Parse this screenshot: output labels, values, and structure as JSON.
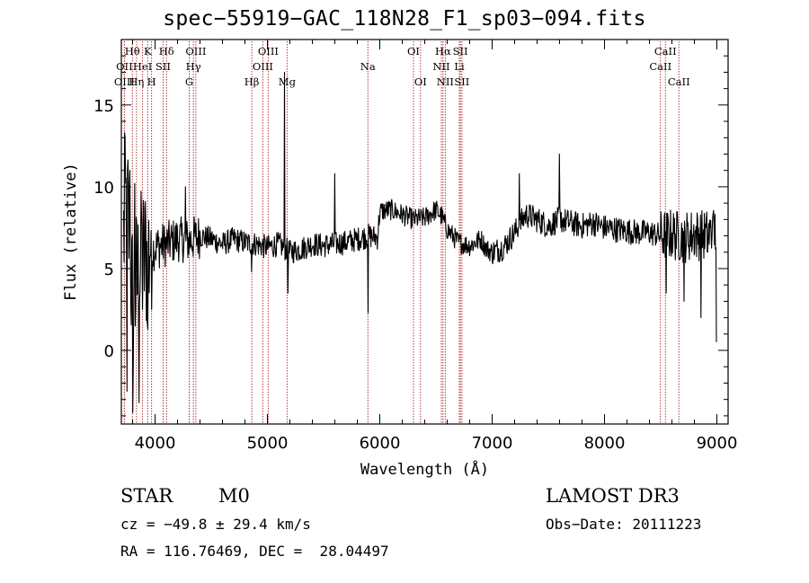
{
  "chart_data": {
    "type": "line",
    "title": "spec−55919−GAC_118N28_F1_sp03−094.fits",
    "xlabel": "Wavelength (Å)",
    "ylabel": "Flux (relative)",
    "xlim": [
      3700,
      9100
    ],
    "ylim": [
      -4.5,
      19.0
    ],
    "x_ticks": [
      4000,
      5000,
      6000,
      7000,
      8000,
      9000
    ],
    "y_ticks": [
      0,
      5,
      10,
      15
    ],
    "grid": false,
    "line_color": "#000000",
    "marker_color": "#b22222",
    "lines": [
      {
        "label": "Hθ",
        "x": 3798,
        "row": 1
      },
      {
        "label": "OII",
        "x": 3727,
        "row": 2
      },
      {
        "label": "OIII",
        "x": 3727,
        "row": 3
      },
      {
        "label": "K",
        "x": 3934,
        "row": 1
      },
      {
        "label": "HeI",
        "x": 3889,
        "row": 2
      },
      {
        "label": "Hη",
        "x": 3835,
        "row": 3
      },
      {
        "label": "Hδ",
        "x": 4102,
        "row": 1
      },
      {
        "label": "SII",
        "x": 4072,
        "row": 2
      },
      {
        "label": "H",
        "x": 3969,
        "row": 3
      },
      {
        "label": "OIII",
        "x": 4363,
        "row": 1
      },
      {
        "label": "Hγ",
        "x": 4341,
        "row": 2
      },
      {
        "label": "G",
        "x": 4304,
        "row": 3
      },
      {
        "label": "OIII",
        "x": 5007,
        "row": 1
      },
      {
        "label": "OIII",
        "x": 4959,
        "row": 2
      },
      {
        "label": "Hβ",
        "x": 4861,
        "row": 3
      },
      {
        "label": "Mg",
        "x": 5175,
        "row": 3
      },
      {
        "label": "Na",
        "x": 5894,
        "row": 2
      },
      {
        "label": "OI",
        "x": 6300,
        "row": 1
      },
      {
        "label": "OI",
        "x": 6363,
        "row": 3
      },
      {
        "label": "Hα",
        "x": 6563,
        "row": 1
      },
      {
        "label": "NII",
        "x": 6548,
        "row": 2
      },
      {
        "label": "NII",
        "x": 6583,
        "row": 3
      },
      {
        "label": "SII",
        "x": 6717,
        "row": 1
      },
      {
        "label": "Li",
        "x": 6708,
        "row": 2
      },
      {
        "label": "SII",
        "x": 6731,
        "row": 3
      },
      {
        "label": "CaII",
        "x": 8542,
        "row": 1
      },
      {
        "label": "CaII",
        "x": 8498,
        "row": 2
      },
      {
        "label": "CaII",
        "x": 8662,
        "row": 3
      }
    ],
    "anchors": [
      [
        3720,
        7.0
      ],
      [
        3750,
        9.5
      ],
      [
        3800,
        3.0
      ],
      [
        3850,
        4.5
      ],
      [
        3900,
        5.5
      ],
      [
        3950,
        6.0
      ],
      [
        4000,
        6.3
      ],
      [
        4100,
        6.5
      ],
      [
        4200,
        6.8
      ],
      [
        4300,
        6.7
      ],
      [
        4400,
        7.0
      ],
      [
        4500,
        6.8
      ],
      [
        4600,
        6.5
      ],
      [
        4700,
        6.8
      ],
      [
        4800,
        6.6
      ],
      [
        4900,
        6.5
      ],
      [
        5000,
        6.3
      ],
      [
        5100,
        6.5
      ],
      [
        5200,
        6.0
      ],
      [
        5300,
        6.2
      ],
      [
        5400,
        6.5
      ],
      [
        5500,
        6.4
      ],
      [
        5600,
        6.5
      ],
      [
        5700,
        6.6
      ],
      [
        5800,
        6.8
      ],
      [
        5900,
        7.0
      ],
      [
        5980,
        6.9
      ],
      [
        6000,
        8.5
      ],
      [
        6100,
        8.6
      ],
      [
        6200,
        8.3
      ],
      [
        6300,
        8.0
      ],
      [
        6400,
        8.1
      ],
      [
        6500,
        8.6
      ],
      [
        6550,
        8.2
      ],
      [
        6600,
        7.4
      ],
      [
        6700,
        6.6
      ],
      [
        6800,
        6.4
      ],
      [
        6900,
        6.8
      ],
      [
        6950,
        6.2
      ],
      [
        7000,
        6.0
      ],
      [
        7100,
        6.3
      ],
      [
        7200,
        7.2
      ],
      [
        7300,
        8.3
      ],
      [
        7400,
        8.0
      ],
      [
        7500,
        7.6
      ],
      [
        7600,
        8.0
      ],
      [
        7700,
        7.8
      ],
      [
        7800,
        7.6
      ],
      [
        7900,
        7.8
      ],
      [
        8000,
        7.5
      ],
      [
        8100,
        7.4
      ],
      [
        8200,
        7.3
      ],
      [
        8300,
        7.2
      ],
      [
        8400,
        7.2
      ],
      [
        8500,
        7.0
      ],
      [
        8600,
        7.1
      ],
      [
        8700,
        6.9
      ],
      [
        8800,
        7.1
      ],
      [
        8900,
        7.0
      ],
      [
        9000,
        7.3
      ]
    ],
    "features": [
      [
        3728,
        13.3
      ],
      [
        3752,
        -2.5
      ],
      [
        3775,
        11.0
      ],
      [
        3800,
        -3.8
      ],
      [
        3820,
        10.2
      ],
      [
        3856,
        -3.2
      ],
      [
        3880,
        8.5
      ],
      [
        3934,
        1.3
      ],
      [
        3969,
        2.5
      ],
      [
        4270,
        10.0
      ],
      [
        4860,
        4.8
      ],
      [
        5150,
        17.0
      ],
      [
        5180,
        3.5
      ],
      [
        5600,
        10.8
      ],
      [
        5894,
        2.3
      ],
      [
        7240,
        10.8
      ],
      [
        7600,
        12.0
      ],
      [
        7610,
        7.5
      ],
      [
        8550,
        3.5
      ],
      [
        8710,
        3.0
      ],
      [
        8860,
        2.0
      ],
      [
        8920,
        6.0
      ],
      [
        8960,
        8.0
      ],
      [
        8995,
        0.5
      ]
    ],
    "noise": [
      {
        "from": 3700,
        "to": 3950,
        "amplitude": 5.0
      },
      {
        "from": 3950,
        "to": 4400,
        "amplitude": 1.4
      },
      {
        "from": 4400,
        "to": 6000,
        "amplitude": 0.75
      },
      {
        "from": 6000,
        "to": 7000,
        "amplitude": 0.65
      },
      {
        "from": 7000,
        "to": 8500,
        "amplitude": 0.8
      },
      {
        "from": 8500,
        "to": 9100,
        "amplitude": 1.6
      }
    ]
  },
  "info": {
    "class": "STAR",
    "subclass": "M0",
    "survey": "LAMOST DR3",
    "cz": "cz = −49.8 ± 29.4 km/s",
    "obs_date": "Obs−Date: 20111223",
    "coords": "RA = 116.76469, DEC =  28.04497"
  }
}
